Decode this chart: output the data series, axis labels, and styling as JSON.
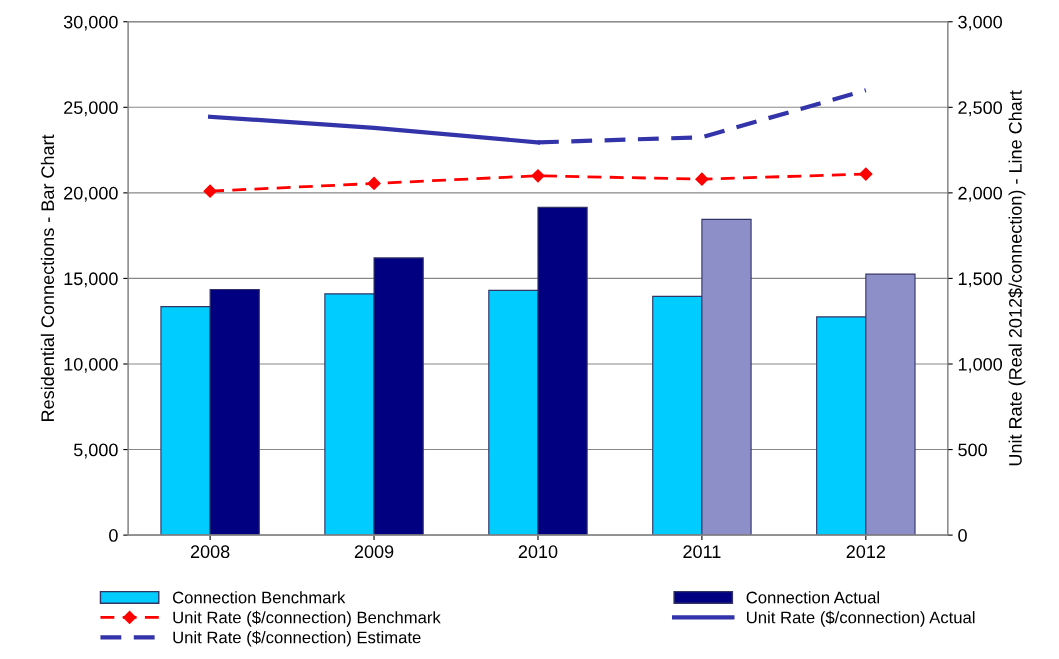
{
  "chart_data": {
    "type": "bar",
    "categories": [
      "2008",
      "2009",
      "2010",
      "2011",
      "2012"
    ],
    "ylabel": "Residential Connections - Bar Chart",
    "y2label": "Unit Rate (Real 2012$/connection) - Line Chart",
    "ylim": [
      0,
      30000
    ],
    "yticks": [
      {
        "value": 0,
        "label": "0"
      },
      {
        "value": 5000,
        "label": "5,000"
      },
      {
        "value": 10000,
        "label": "10,000"
      },
      {
        "value": 15000,
        "label": "15,000"
      },
      {
        "value": 20000,
        "label": "20,000"
      },
      {
        "value": 25000,
        "label": "25,000"
      },
      {
        "value": 30000,
        "label": "30,000"
      }
    ],
    "y2lim": [
      0,
      3000
    ],
    "y2ticks": [
      {
        "value": 0,
        "label": "0"
      },
      {
        "value": 500,
        "label": "500"
      },
      {
        "value": 1000,
        "label": "1,000"
      },
      {
        "value": 1500,
        "label": "1,500"
      },
      {
        "value": 2000,
        "label": "2,000"
      },
      {
        "value": 2500,
        "label": "2,500"
      },
      {
        "value": 3000,
        "label": "3,000"
      }
    ],
    "grid": "y",
    "legend": "bottom",
    "series": [
      {
        "name": "Connection Benchmark",
        "color": "#00ccff",
        "values": [
          13350,
          14100,
          14300,
          13950,
          12750
        ]
      },
      {
        "name": "Connection Actual",
        "color": "#000080",
        "colors": [
          "#000080",
          "#000080",
          "#000080",
          "#8c8fc8",
          "#8c8fc8"
        ],
        "values": [
          14350,
          16200,
          19150,
          18450,
          15250
        ]
      },
      {
        "name": "Unit Rate ($/connection) Benchmark",
        "type": "line",
        "axis": "y2",
        "color": "#ff0000",
        "marker": "diamond",
        "line_style": "dashed",
        "values": [
          2010,
          2055,
          2100,
          2080,
          2110
        ]
      },
      {
        "name": "Unit Rate ($/connection) Actual",
        "type": "line",
        "axis": "y2",
        "color": "#3333aa",
        "marker": "none",
        "line_style": "solid",
        "values": [
          2445,
          2380,
          2295,
          null,
          null
        ]
      },
      {
        "name": "Unit Rate ($/connection) Estimate",
        "type": "line",
        "axis": "y2",
        "color": "#3333aa",
        "marker": "none",
        "line_style": "dashed",
        "values": [
          null,
          null,
          2295,
          2325,
          2600
        ]
      }
    ]
  }
}
